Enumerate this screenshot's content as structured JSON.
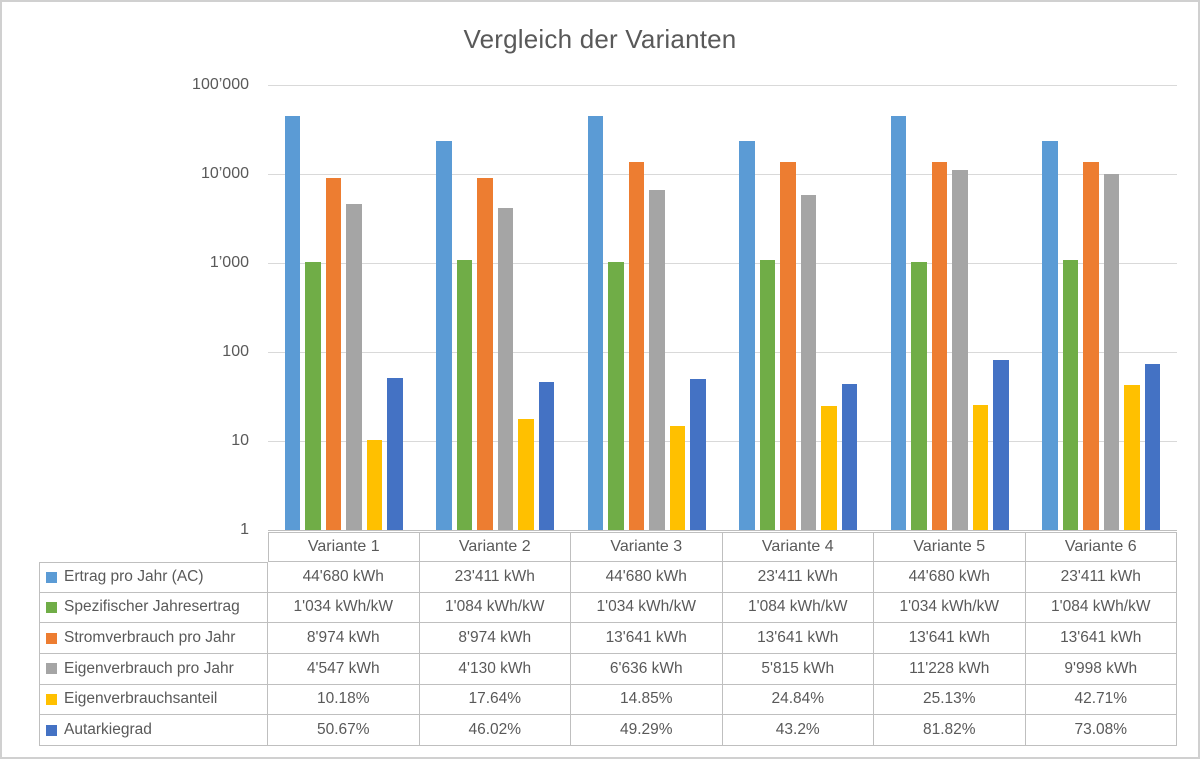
{
  "title": "Vergleich der Varianten",
  "colors": {
    "text": "#595959",
    "gridline": "#d9d9d9",
    "axis_line": "#bfbfbf",
    "table_border": "#bfbfbf",
    "background": "#ffffff",
    "frame_border": "#d0d0d0"
  },
  "chart_data": {
    "type": "bar",
    "title": "Vergleich der Varianten",
    "xlabel": "",
    "ylabel": "",
    "grid": true,
    "legend_position": "table-left-column",
    "y_axis": {
      "scale": "log",
      "min": 1,
      "max": 100000,
      "ticks": [
        {
          "value": 100000,
          "label": "100’000"
        },
        {
          "value": 10000,
          "label": "10’000"
        },
        {
          "value": 1000,
          "label": "1’000"
        },
        {
          "value": 100,
          "label": "100"
        },
        {
          "value": 10,
          "label": "10"
        },
        {
          "value": 1,
          "label": "1"
        }
      ]
    },
    "categories": [
      "Variante 1",
      "Variante 2",
      "Variante 3",
      "Variante 4",
      "Variante 5",
      "Variante 6"
    ],
    "series": [
      {
        "name": "Ertrag pro Jahr (AC)",
        "color": "#5b9bd5",
        "values": [
          44680,
          23411,
          44680,
          23411,
          44680,
          23411
        ],
        "display": [
          "44'680 kWh",
          "23'411 kWh",
          "44'680 kWh",
          "23'411 kWh",
          "44'680 kWh",
          "23'411 kWh"
        ]
      },
      {
        "name": "Spezifischer Jahresertrag",
        "color": "#70ad47",
        "values": [
          1034,
          1084,
          1034,
          1084,
          1034,
          1084
        ],
        "display": [
          "1'034 kWh/kW",
          "1'084 kWh/kW",
          "1'034 kWh/kW",
          "1'084 kWh/kW",
          "1'034 kWh/kW",
          "1'084 kWh/kW"
        ]
      },
      {
        "name": "Stromverbrauch pro Jahr",
        "color": "#ed7d31",
        "values": [
          8974,
          8974,
          13641,
          13641,
          13641,
          13641
        ],
        "display": [
          "8'974 kWh",
          "8'974 kWh",
          "13'641 kWh",
          "13'641 kWh",
          "13'641 kWh",
          "13'641 kWh"
        ]
      },
      {
        "name": "Eigenverbrauch pro Jahr",
        "color": "#a5a5a5",
        "values": [
          4547,
          4130,
          6636,
          5815,
          11228,
          9998
        ],
        "display": [
          "4'547 kWh",
          "4'130 kWh",
          "6'636 kWh",
          "5'815 kWh",
          "11'228 kWh",
          "9'998 kWh"
        ]
      },
      {
        "name": "Eigenverbrauchsanteil",
        "color": "#ffc000",
        "values": [
          10.18,
          17.64,
          14.85,
          24.84,
          25.13,
          42.71
        ],
        "display": [
          "10.18%",
          "17.64%",
          "14.85%",
          "24.84%",
          "25.13%",
          "42.71%"
        ]
      },
      {
        "name": "Autarkiegrad",
        "color": "#4472c4",
        "values": [
          50.67,
          46.02,
          49.29,
          43.2,
          81.82,
          73.08
        ],
        "display": [
          "50.67%",
          "46.02%",
          "49.29%",
          "43.2%",
          "81.82%",
          "73.08%"
        ]
      }
    ]
  }
}
